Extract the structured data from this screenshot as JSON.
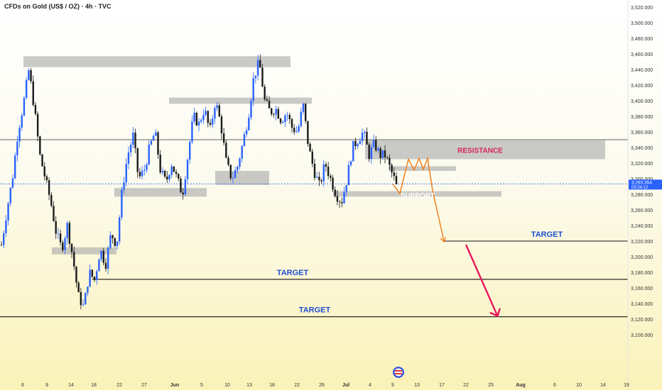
{
  "chart_data": {
    "type": "candlestick",
    "title": "CFDs on Gold (US$ / OZ) · 4h · TVC",
    "xlabel": "",
    "ylabel": "",
    "y_ticks": [
      3100,
      3120,
      3140,
      3160,
      3180,
      3200,
      3220,
      3240,
      3260,
      3280,
      3300,
      3320,
      3340,
      3360,
      3380,
      3400,
      3420,
      3440,
      3460,
      3480,
      3500,
      3520
    ],
    "ylim": [
      3096,
      3524
    ],
    "x_tick_labels": [
      "6",
      "9",
      "14",
      "18",
      "22",
      "27",
      "Jun",
      "5",
      "10",
      "13",
      "18",
      "22",
      "26",
      "Jul",
      "4",
      "9",
      "13",
      "17",
      "22",
      "25",
      "Aug",
      "6",
      "10",
      "14",
      "19"
    ],
    "last_price": "3,293.354",
    "countdown": "03:24:12",
    "price_path": [
      3215,
      3260,
      3300,
      3360,
      3395,
      3440,
      3390,
      3330,
      3300,
      3270,
      3230,
      3210,
      3240,
      3200,
      3150,
      3135,
      3180,
      3170,
      3210,
      3190,
      3230,
      3215,
      3285,
      3330,
      3355,
      3300,
      3310,
      3340,
      3360,
      3310,
      3295,
      3320,
      3300,
      3280,
      3330,
      3380,
      3370,
      3390,
      3360,
      3400,
      3370,
      3320,
      3300,
      3315,
      3345,
      3380,
      3430,
      3450,
      3400,
      3385,
      3390,
      3375,
      3385,
      3365,
      3360,
      3395,
      3340,
      3310,
      3290,
      3320,
      3300,
      3280,
      3270,
      3300,
      3340,
      3350,
      3360,
      3330,
      3345,
      3330,
      3330,
      3310,
      3293
    ],
    "projection_wave": [
      3281,
      3325,
      3311,
      3326,
      3312,
      3326,
      3285,
      3220
    ],
    "projection_final": [
      3220,
      3123
    ],
    "levels": [
      {
        "name": "resistance",
        "low": 3325,
        "high": 3350,
        "label": "RESISTANCE",
        "color": "#d6245a"
      },
      {
        "name": "support",
        "low": 3277,
        "high": 3284,
        "label": "SUPPORT",
        "color": "#ffffff"
      },
      {
        "name": "target-1",
        "value": 3220,
        "label": "TARGET",
        "color": "#1f4fd1"
      },
      {
        "name": "target-2",
        "value": 3171,
        "label": "TARGET",
        "color": "#1f4fd1"
      },
      {
        "name": "target-3",
        "value": 3123,
        "label": "TARGET",
        "color": "#1f4fd1"
      }
    ],
    "zones": [
      {
        "name": "zone-top-left",
        "low": 3443,
        "high": 3457
      },
      {
        "name": "zone-top-center",
        "low": 3396,
        "high": 3404
      },
      {
        "name": "zone-mid-center",
        "low": 3292,
        "high": 3310
      },
      {
        "name": "zone-small-right",
        "low": 3310,
        "high": 3316
      },
      {
        "name": "zone-left-mid",
        "low": 3277,
        "high": 3288
      },
      {
        "name": "zone-left-low",
        "low": 3203,
        "high": 3212
      }
    ],
    "resistance_line": 3350,
    "grid": false,
    "colors": {
      "up": "#2962ff",
      "down": "#1a1a1a",
      "zone": "#a9a9a9",
      "projection": "#f07a12",
      "final_arrow": "#e8185c",
      "current_price": "#2962ff"
    }
  }
}
